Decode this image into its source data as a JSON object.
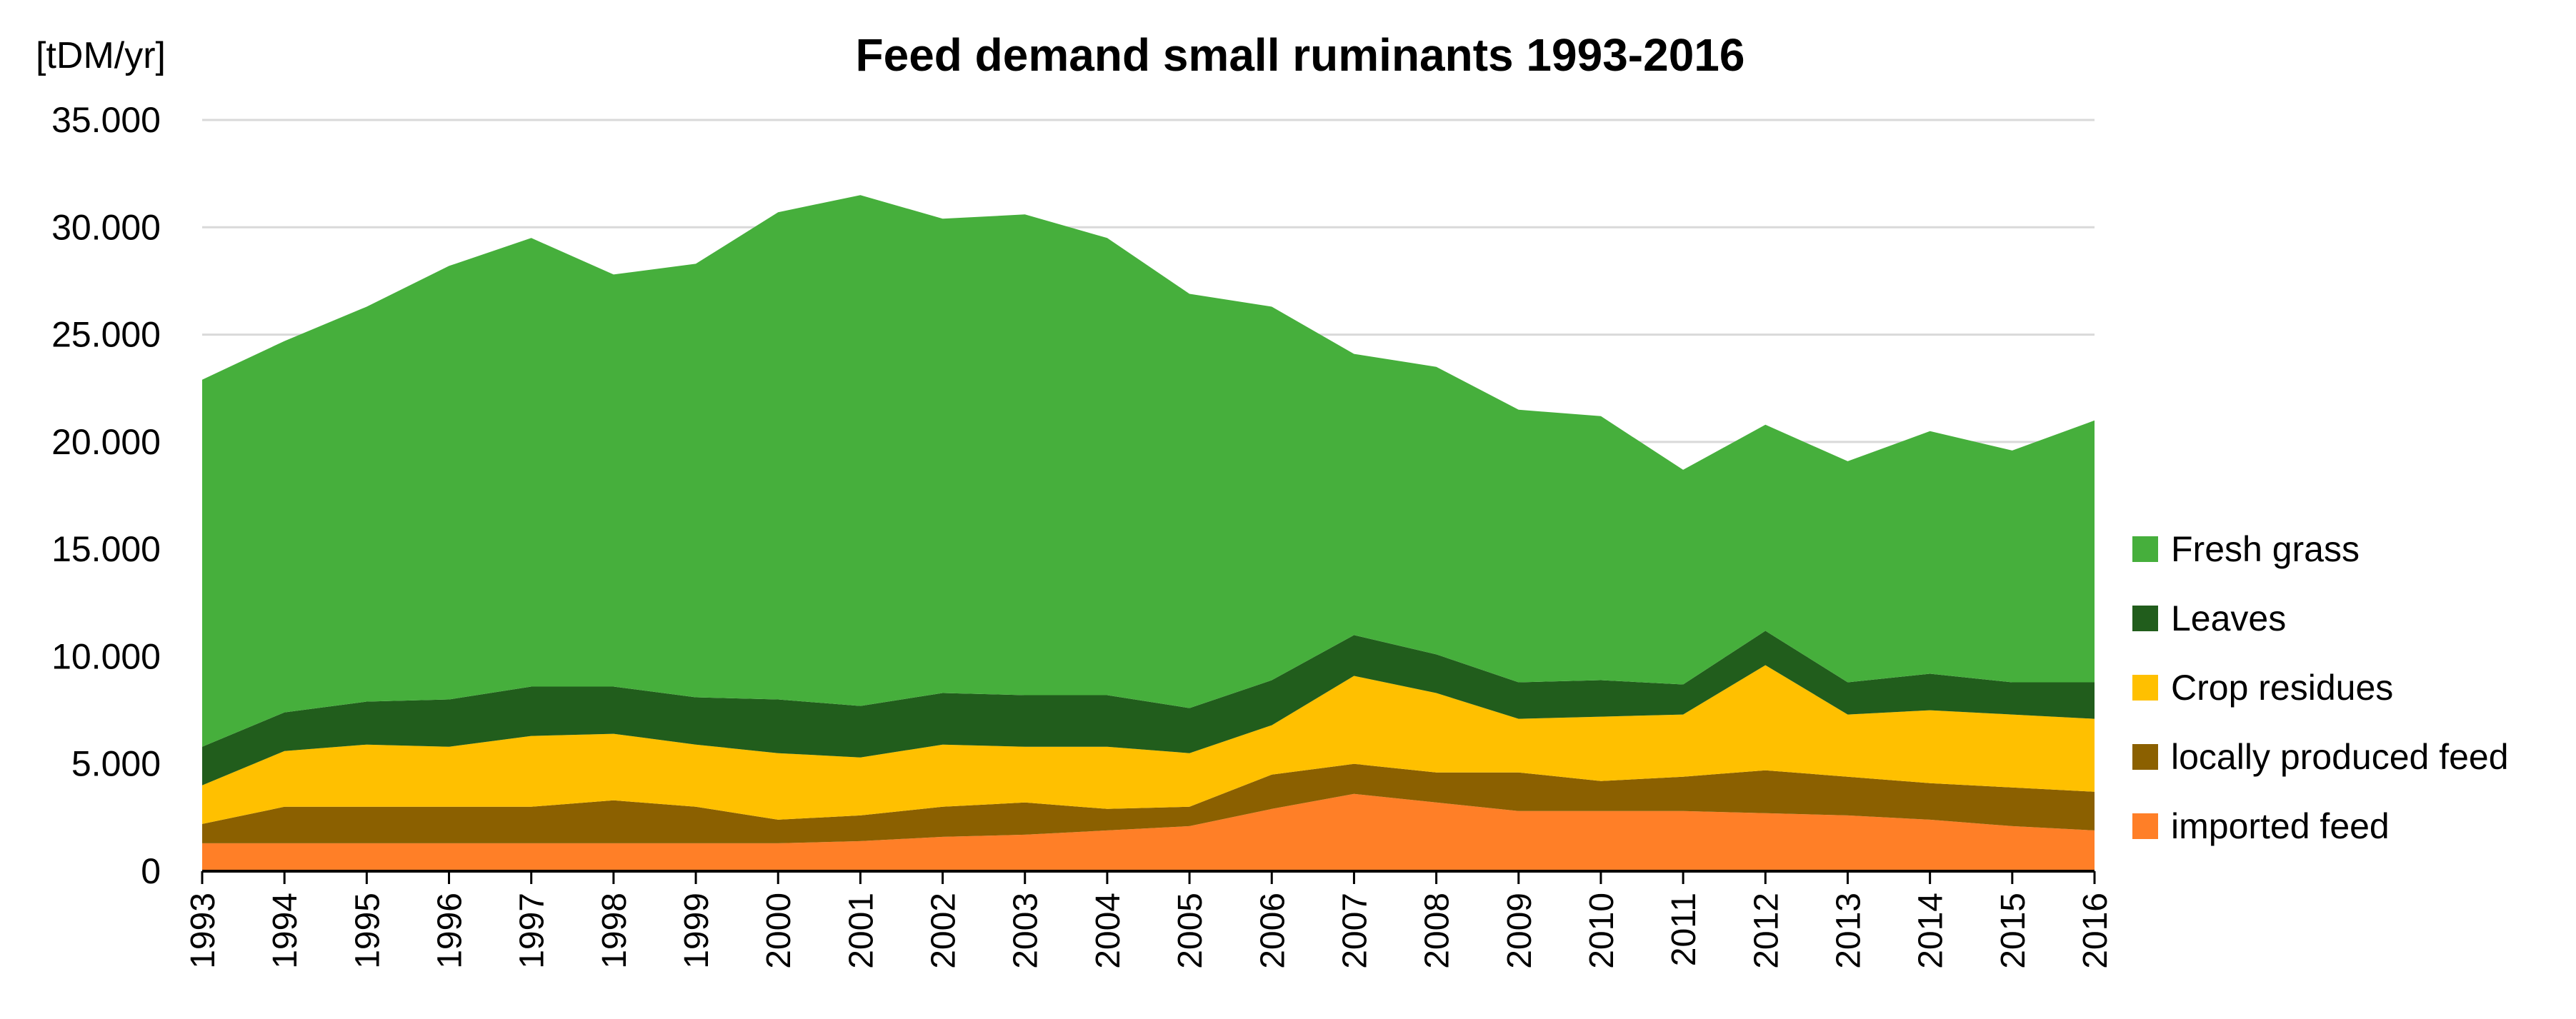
{
  "chart_data": {
    "type": "area",
    "stacked": true,
    "title": "Feed demand small ruminants 1993-2016",
    "y_unit_label": "[tDM/yr]",
    "xlabel": "",
    "ylabel": "",
    "ylim": [
      0,
      35000
    ],
    "yticks": [
      0,
      5000,
      10000,
      15000,
      20000,
      25000,
      30000,
      35000
    ],
    "ytick_labels": [
      "0",
      "5.000",
      "10.000",
      "15.000",
      "20.000",
      "25.000",
      "30.000",
      "35.000"
    ],
    "grid": true,
    "legend_position": "right",
    "x": [
      "1993",
      "1994",
      "1995",
      "1996",
      "1997",
      "1998",
      "1999",
      "2000",
      "2001",
      "2002",
      "2003",
      "2004",
      "2005",
      "2006",
      "2007",
      "2008",
      "2009",
      "2010",
      "2011",
      "2012",
      "2013",
      "2014",
      "2015",
      "2016"
    ],
    "series": [
      {
        "name": "imported feed",
        "color": "#FF7F27",
        "values": [
          1300,
          1300,
          1300,
          1300,
          1300,
          1300,
          1300,
          1300,
          1400,
          1600,
          1700,
          1900,
          2100,
          2900,
          3600,
          3200,
          2800,
          2800,
          2800,
          2700,
          2600,
          2400,
          2100,
          1900
        ]
      },
      {
        "name": "locally produced feed",
        "color": "#8B6000",
        "values": [
          900,
          1700,
          1700,
          1700,
          1700,
          2000,
          1700,
          1100,
          1200,
          1400,
          1500,
          1000,
          900,
          1600,
          1400,
          1400,
          1800,
          1400,
          1600,
          2000,
          1800,
          1700,
          1800,
          1800
        ]
      },
      {
        "name": "Crop residues",
        "color": "#FFC000",
        "values": [
          1800,
          2600,
          2900,
          2800,
          3300,
          3100,
          2900,
          3100,
          2700,
          2900,
          2600,
          2900,
          2500,
          2300,
          4100,
          3700,
          2500,
          3000,
          2900,
          4900,
          2900,
          3400,
          3400,
          3400
        ]
      },
      {
        "name": "Leaves",
        "color": "#215D1C",
        "values": [
          1800,
          1800,
          2000,
          2200,
          2300,
          2200,
          2200,
          2500,
          2400,
          2400,
          2400,
          2400,
          2100,
          2100,
          1900,
          1800,
          1700,
          1700,
          1400,
          1600,
          1500,
          1700,
          1500,
          1700
        ]
      },
      {
        "name": "Fresh grass",
        "color": "#46AF3C",
        "values": [
          17100,
          17300,
          18400,
          20200,
          20900,
          19200,
          20200,
          22700,
          23800,
          22100,
          22400,
          21300,
          19300,
          17400,
          13100,
          13400,
          12700,
          12300,
          10000,
          9600,
          10300,
          11300,
          10800,
          12200
        ]
      }
    ],
    "legend_order": [
      "Fresh grass",
      "Leaves",
      "Crop residues",
      "locally produced feed",
      "imported feed"
    ]
  }
}
